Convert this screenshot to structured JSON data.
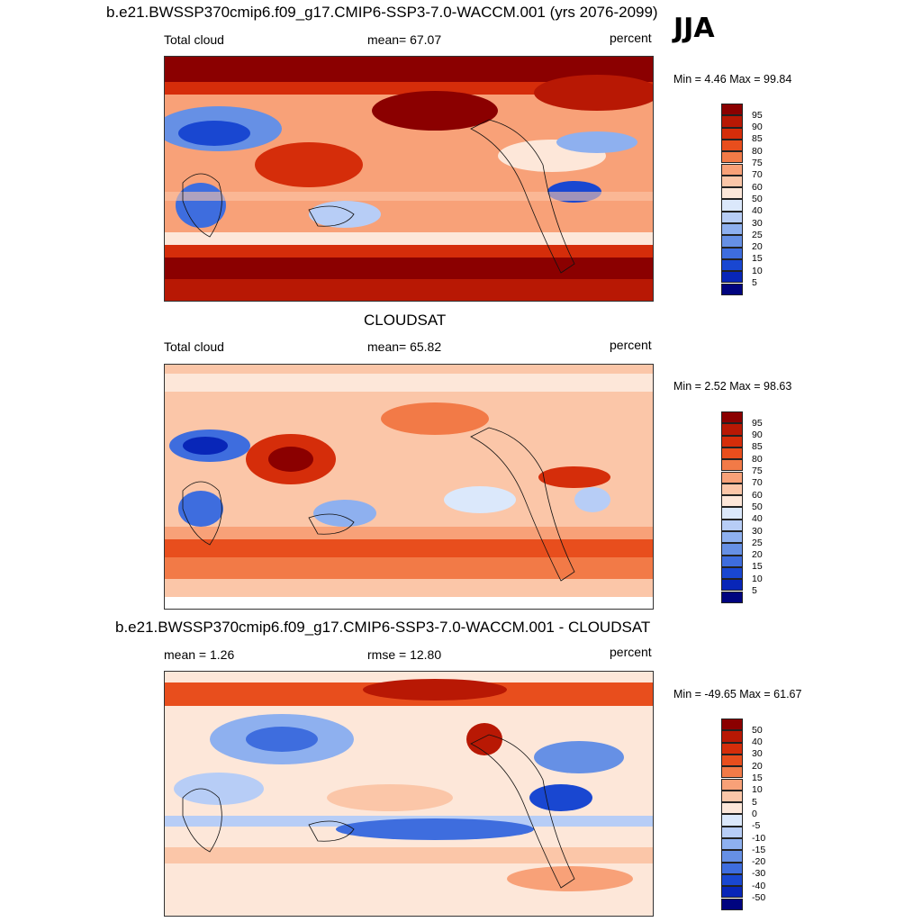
{
  "season": "JJA",
  "panels": [
    {
      "title": "b.e21.BWSSP370cmip6.f09_g17.CMIP6-SSP3-7.0-WACCM.001 (yrs 2076-2099)",
      "left_label": "Total cloud",
      "center_label": "mean=  67.07",
      "units": "percent",
      "minmax": "Min =   4.46 Max =  99.84",
      "colorbar": {
        "levels": [
          "95",
          "90",
          "85",
          "80",
          "75",
          "70",
          "60",
          "50",
          "40",
          "30",
          "25",
          "20",
          "15",
          "10",
          "5"
        ],
        "colors": [
          "#8b0000",
          "#b81804",
          "#d52d0a",
          "#e84e1d",
          "#f27a47",
          "#f8a178",
          "#fbc6a8",
          "#fde7d9",
          "#dbe8fb",
          "#b7cdf6",
          "#8eb0ef",
          "#6690e5",
          "#3e6dde",
          "#1947d1",
          "#0826b8",
          "#00047f"
        ]
      }
    },
    {
      "title": "CLOUDSAT",
      "left_label": "Total cloud",
      "center_label": "mean=  65.82",
      "units": "percent",
      "minmax": "Min =   2.52 Max =  98.63",
      "colorbar": {
        "levels": [
          "95",
          "90",
          "85",
          "80",
          "75",
          "70",
          "60",
          "50",
          "40",
          "30",
          "25",
          "20",
          "15",
          "10",
          "5"
        ],
        "colors": [
          "#8b0000",
          "#b81804",
          "#d52d0a",
          "#e84e1d",
          "#f27a47",
          "#f8a178",
          "#fbc6a8",
          "#fde7d9",
          "#dbe8fb",
          "#b7cdf6",
          "#8eb0ef",
          "#6690e5",
          "#3e6dde",
          "#1947d1",
          "#0826b8",
          "#00047f"
        ]
      }
    },
    {
      "title": "b.e21.BWSSP370cmip6.f09_g17.CMIP6-SSP3-7.0-WACCM.001 - CLOUDSAT",
      "left_label": "mean =   1.26",
      "center_label": "rmse =  12.80",
      "units": "percent",
      "minmax": "Min = -49.65 Max =  61.67",
      "colorbar": {
        "levels": [
          "50",
          "40",
          "30",
          "20",
          "15",
          "10",
          "5",
          "0",
          "-5",
          "-10",
          "-15",
          "-20",
          "-30",
          "-40",
          "-50"
        ],
        "colors": [
          "#8b0000",
          "#b81804",
          "#d52d0a",
          "#e84e1d",
          "#f27a47",
          "#f8a178",
          "#fbc6a8",
          "#fde7d9",
          "#dbe8fb",
          "#b7cdf6",
          "#8eb0ef",
          "#6690e5",
          "#3e6dde",
          "#1947d1",
          "#0826b8",
          "#00047f"
        ]
      }
    }
  ]
}
